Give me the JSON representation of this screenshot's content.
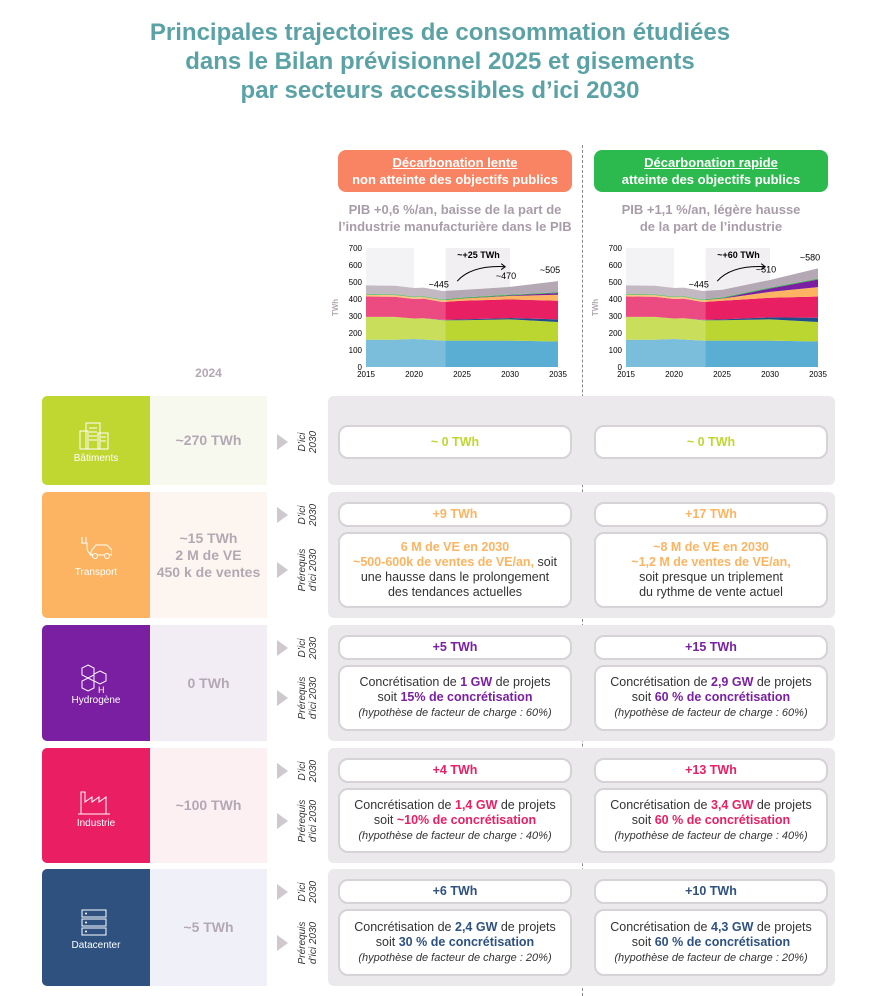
{
  "title": [
    "Principales trajectoires de consommation étudiées",
    "dans le Bilan prévisionnel 2025 et gisements",
    "par secteurs accessibles d’ici 2030"
  ],
  "scenarios": [
    {
      "name": "Décarbonation lente",
      "subtitle": "non atteinte des objectifs publics",
      "color": "#f98463",
      "pib": [
        "PIB +0,6 %/an, baisse de la part de",
        "l’industrie manufacturière dans le PIB"
      ]
    },
    {
      "name": "Décarbonation rapide",
      "subtitle": "atteinte des objectifs publics",
      "color": "#2cba4e",
      "pib": [
        "PIB +1,1 %/an, légère hausse",
        "de la part de l’industrie"
      ]
    }
  ],
  "year_label": "2024",
  "horizon_label": [
    "D’ici",
    "2030"
  ],
  "prereq_label": [
    "Prérequis",
    "d’ici 2030"
  ],
  "chart_data": [
    {
      "type": "area",
      "ylabel": "TWh",
      "ylim": [
        0,
        700
      ],
      "xlim": [
        2015,
        2035
      ],
      "yticks": [
        0,
        100,
        200,
        300,
        400,
        500,
        600,
        700
      ],
      "xticks": [
        2015,
        2020,
        2025,
        2030,
        2035
      ],
      "x": [
        2015,
        2018,
        2020,
        2021,
        2023,
        2025,
        2030,
        2035
      ],
      "series": [
        {
          "color": "#5aaed3",
          "values": [
            160,
            160,
            165,
            162,
            155,
            155,
            155,
            150
          ]
        },
        {
          "color": "#bcd631",
          "values": [
            135,
            135,
            120,
            125,
            120,
            120,
            125,
            115
          ]
        },
        {
          "color": "#1d4f8c",
          "values": [
            0,
            0,
            0,
            0,
            2,
            5,
            8,
            15
          ]
        },
        {
          "color": "#e81f63",
          "values": [
            120,
            118,
            115,
            115,
            105,
            110,
            110,
            110
          ]
        },
        {
          "color": "#fdb462",
          "values": [
            10,
            10,
            10,
            10,
            10,
            12,
            20,
            35
          ]
        },
        {
          "color": "#7b1fa2",
          "values": [
            0,
            0,
            0,
            0,
            0,
            1,
            3,
            10
          ]
        },
        {
          "color": "#35b34a",
          "values": [
            5,
            5,
            5,
            5,
            5,
            5,
            5,
            5
          ]
        },
        {
          "color": "#b3a8b3",
          "values": [
            50,
            50,
            50,
            50,
            50,
            45,
            45,
            65
          ]
        }
      ],
      "annotations": [
        {
          "text": "~445",
          "x": 2023,
          "y": 445
        },
        {
          "text": "~470",
          "x": 2030,
          "y": 470
        },
        {
          "text": "~505",
          "x": 2035,
          "y": 505
        }
      ],
      "delta": "~+25 TWh"
    },
    {
      "type": "area",
      "ylabel": "TWh",
      "ylim": [
        0,
        700
      ],
      "xlim": [
        2015,
        2035
      ],
      "yticks": [
        0,
        100,
        200,
        300,
        400,
        500,
        600,
        700
      ],
      "xticks": [
        2015,
        2020,
        2025,
        2030,
        2035
      ],
      "x": [
        2015,
        2018,
        2020,
        2021,
        2023,
        2025,
        2030,
        2035
      ],
      "series": [
        {
          "color": "#5aaed3",
          "values": [
            160,
            160,
            165,
            162,
            155,
            155,
            155,
            150
          ]
        },
        {
          "color": "#bcd631",
          "values": [
            135,
            135,
            120,
            125,
            120,
            120,
            125,
            115
          ]
        },
        {
          "color": "#1d4f8c",
          "values": [
            0,
            0,
            0,
            0,
            2,
            5,
            12,
            25
          ]
        },
        {
          "color": "#e81f63",
          "values": [
            120,
            118,
            115,
            115,
            105,
            110,
            115,
            125
          ]
        },
        {
          "color": "#fdb462",
          "values": [
            10,
            10,
            10,
            10,
            10,
            12,
            35,
            55
          ]
        },
        {
          "color": "#7b1fa2",
          "values": [
            0,
            0,
            0,
            0,
            0,
            2,
            20,
            45
          ]
        },
        {
          "color": "#35b34a",
          "values": [
            5,
            5,
            5,
            5,
            5,
            5,
            5,
            5
          ]
        },
        {
          "color": "#b3a8b3",
          "values": [
            50,
            50,
            50,
            50,
            50,
            45,
            45,
            60
          ]
        }
      ],
      "annotations": [
        {
          "text": "~445",
          "x": 2023,
          "y": 445
        },
        {
          "text": "~510",
          "x": 2030,
          "y": 510
        },
        {
          "text": "~580",
          "x": 2035,
          "y": 580
        }
      ],
      "delta": "~+60 TWh"
    }
  ],
  "sectors": [
    {
      "name": "Bâtiments",
      "icon": "building-icon",
      "color": "#bfd730",
      "bg": "#f7f9ef",
      "value": [
        "~270 TWh"
      ],
      "horizon": [
        [
          [
            {
              "t": "~ 0 TWh",
              "h": 1
            }
          ]
        ],
        [
          [
            {
              "t": "~ 0 TWh",
              "h": 1
            }
          ]
        ]
      ],
      "prereq": null
    },
    {
      "name": "Transport",
      "icon": "electric-car-icon",
      "color": "#fdb462",
      "bg": "#fdf6f0",
      "value": [
        "~15 TWh",
        "2 M de VE",
        "450 k de ventes"
      ],
      "horizon": [
        [
          [
            {
              "t": "+9 TWh",
              "h": 1
            }
          ]
        ],
        [
          [
            {
              "t": "+17 TWh",
              "h": 1
            }
          ]
        ]
      ],
      "prereq": [
        [
          [
            {
              "t": "6 M de VE en 2030",
              "h": 1
            }
          ],
          [
            {
              "t": "~500-600k de ventes de VE/an,",
              "h": 1
            },
            {
              "t": " soit"
            }
          ],
          [
            {
              "t": "une hausse dans le prolongement"
            }
          ],
          [
            {
              "t": "des tendances actuelles"
            }
          ]
        ],
        [
          [
            {
              "t": "~8 M de VE en 2030",
              "h": 1
            }
          ],
          [
            {
              "t": "~1,2 M de ventes de VE/an,",
              "h": 1
            }
          ],
          [
            {
              "t": "soit presque un triplement"
            }
          ],
          [
            {
              "t": "du rythme de vente actuel"
            }
          ]
        ]
      ]
    },
    {
      "name": "Hydrogène",
      "icon": "hydrogen-molecule-icon",
      "color": "#7b1fa2",
      "bg": "#f2edf5",
      "value": [
        "0 TWh"
      ],
      "horizon": [
        [
          [
            {
              "t": "+5 TWh",
              "h": 1
            }
          ]
        ],
        [
          [
            {
              "t": "+15 TWh",
              "h": 1
            }
          ]
        ]
      ],
      "prereq": [
        [
          [
            {
              "t": "Concrétisation de "
            },
            {
              "t": "1 GW",
              "h": 1
            },
            {
              "t": " de projets"
            }
          ],
          [
            {
              "t": "soit "
            },
            {
              "t": "15% de concrétisation",
              "h": 1
            }
          ],
          [
            {
              "t": "(hypothèse de facteur de charge : 60%)",
              "i": 1
            }
          ]
        ],
        [
          [
            {
              "t": "Concrétisation de "
            },
            {
              "t": "2,9 GW",
              "h": 1
            },
            {
              "t": " de projets"
            }
          ],
          [
            {
              "t": "soit "
            },
            {
              "t": "60 % de concrétisation",
              "h": 1
            }
          ],
          [
            {
              "t": "(hypothèse de facteur de charge : 60%)",
              "i": 1
            }
          ]
        ]
      ]
    },
    {
      "name": "Industrie",
      "icon": "factory-icon",
      "color": "#e91e63",
      "bg": "#fdf0f3",
      "value": [
        "~100 TWh"
      ],
      "horizon": [
        [
          [
            {
              "t": "+4 TWh",
              "h": 1
            }
          ]
        ],
        [
          [
            {
              "t": "+13 TWh",
              "h": 1
            }
          ]
        ]
      ],
      "prereq": [
        [
          [
            {
              "t": "Concrétisation de "
            },
            {
              "t": "1,4 GW",
              "h": 1
            },
            {
              "t": " de projets"
            }
          ],
          [
            {
              "t": "soit "
            },
            {
              "t": "~10% de concrétisation",
              "h": 1
            }
          ],
          [
            {
              "t": "(hypothèse de facteur de charge : 40%)",
              "i": 1
            }
          ]
        ],
        [
          [
            {
              "t": "Concrétisation de "
            },
            {
              "t": "3,4 GW",
              "h": 1
            },
            {
              "t": " de projets"
            }
          ],
          [
            {
              "t": "soit "
            },
            {
              "t": "60 % de concrétisation",
              "h": 1
            }
          ],
          [
            {
              "t": "(hypothèse de facteur de charge : 40%)",
              "i": 1
            }
          ]
        ]
      ]
    },
    {
      "name": "Datacenter",
      "icon": "server-rack-icon",
      "color": "#2e5180",
      "bg": "#f0f1f8",
      "value": [
        "~5 TWh"
      ],
      "horizon": [
        [
          [
            {
              "t": "+6 TWh",
              "h": 1
            }
          ]
        ],
        [
          [
            {
              "t": "+10 TWh",
              "h": 1
            }
          ]
        ]
      ],
      "prereq": [
        [
          [
            {
              "t": "Concrétisation de "
            },
            {
              "t": "2,4 GW",
              "h": 1
            },
            {
              "t": " de projets"
            }
          ],
          [
            {
              "t": "soit "
            },
            {
              "t": "30 % de concrétisation",
              "h": 1
            }
          ],
          [
            {
              "t": "(hypothèse de facteur de charge : 20%)",
              "i": 1
            }
          ]
        ],
        [
          [
            {
              "t": "Concrétisation de "
            },
            {
              "t": "4,3 GW",
              "h": 1
            },
            {
              "t": " de projets"
            }
          ],
          [
            {
              "t": "soit "
            },
            {
              "t": "60 % de concrétisation",
              "h": 1
            }
          ],
          [
            {
              "t": "(hypothèse de facteur de charge : 20%)",
              "i": 1
            }
          ]
        ]
      ]
    }
  ]
}
